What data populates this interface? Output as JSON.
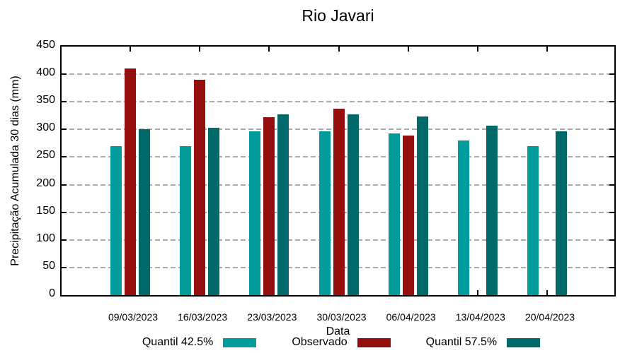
{
  "chart_data": {
    "type": "bar",
    "title": "Rio Javari",
    "xlabel": "Data",
    "ylabel": "Precipitação Acumulada 30 dias (mm)",
    "ylim": [
      0,
      450
    ],
    "ytick_step": 50,
    "grid": true,
    "legend_position": "bottom",
    "categories": [
      "09/03/2023",
      "16/03/2023",
      "23/03/2023",
      "30/03/2023",
      "06/04/2023",
      "13/04/2023",
      "20/04/2023"
    ],
    "series": [
      {
        "name": "Quantil 42.5%",
        "color": "#009C9C",
        "values": [
          270,
          270,
          297,
          297,
          293,
          280,
          270
        ]
      },
      {
        "name": "Observado",
        "color": "#950F0F",
        "values": [
          410,
          390,
          322,
          338,
          289,
          null,
          null
        ]
      },
      {
        "name": "Quantil 57.5%",
        "color": "#006A6A",
        "values": [
          300,
          303,
          327,
          327,
          324,
          307,
          296
        ]
      }
    ]
  }
}
